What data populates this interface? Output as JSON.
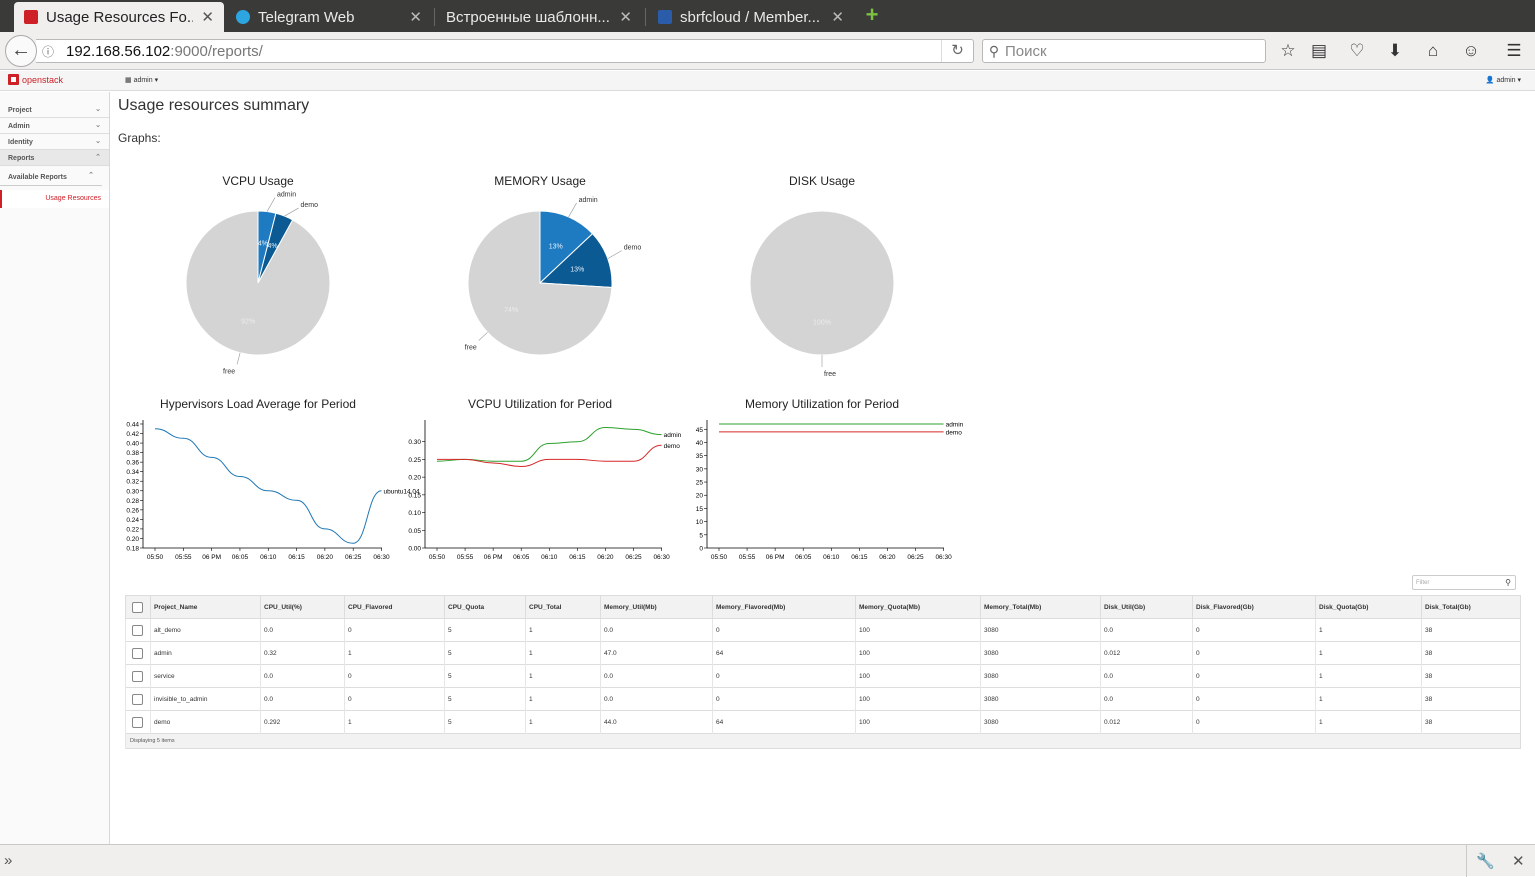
{
  "browser": {
    "tabs": [
      {
        "title": "Usage Resources Fo...",
        "favicon": "#cd2027",
        "active": true
      },
      {
        "title": "Telegram Web",
        "favicon": "#2ca5e0",
        "active": false
      },
      {
        "title": "Встроенные шаблонн...",
        "favicon": "",
        "active": false
      },
      {
        "title": "sbrfcloud / Member...",
        "favicon": "#2a5caa",
        "active": false
      }
    ],
    "url_host": "192.168.56.102",
    "url_path": ":9000/reports/",
    "search_placeholder": "Поиск"
  },
  "header": {
    "logo_text": "openstack",
    "project_selector": "admin ▾",
    "user_menu": "admin ▾"
  },
  "sidebar": {
    "panels": [
      {
        "label": "Project",
        "chev": "⌄"
      },
      {
        "label": "Admin",
        "chev": "⌄"
      },
      {
        "label": "Identity",
        "chev": "⌄"
      },
      {
        "label": "Reports",
        "chev": "⌃"
      }
    ],
    "sub": {
      "label": "Available Reports",
      "chev": "⌃"
    },
    "active_link": "Usage Resources"
  },
  "page": {
    "title": "Usage resources summary",
    "graphs_label": "Graphs:"
  },
  "colors": {
    "admin": "#1f7bc1",
    "demo": "#0b5a94",
    "free": "#d4d4d4",
    "green_line": "#2ca02c",
    "red_line": "#d62728",
    "blue_line": "#1f77b4"
  },
  "chart_data": [
    {
      "type": "pie",
      "title": "VCPU Usage",
      "slices": [
        {
          "label": "admin",
          "value": 4,
          "text": "4%"
        },
        {
          "label": "demo",
          "value": 4,
          "text": "4%"
        },
        {
          "label": "free",
          "value": 92,
          "text": "92%"
        }
      ]
    },
    {
      "type": "pie",
      "title": "MEMORY Usage",
      "slices": [
        {
          "label": "admin",
          "value": 13,
          "text": "13%"
        },
        {
          "label": "demo",
          "value": 13,
          "text": "13%"
        },
        {
          "label": "free",
          "value": 74,
          "text": "74%"
        }
      ]
    },
    {
      "type": "pie",
      "title": "DISK Usage",
      "slices": [
        {
          "label": "free",
          "value": 100,
          "text": "100%"
        }
      ]
    },
    {
      "type": "line",
      "title": "Hypervisors Load Average for Period",
      "x": [
        "05:50",
        "05:55",
        "06 PM",
        "06:05",
        "06:10",
        "06:15",
        "06:20",
        "06:25",
        "06:30"
      ],
      "y_ticks": [
        "0.18",
        "0.20",
        "0.22",
        "0.24",
        "0.26",
        "0.28",
        "0.30",
        "0.32",
        "0.34",
        "0.36",
        "0.38",
        "0.40",
        "0.42",
        "0.44"
      ],
      "ylim": [
        0.18,
        0.44
      ],
      "series": [
        {
          "name": "ubuntu14.04",
          "values": [
            0.43,
            0.41,
            0.37,
            0.33,
            0.3,
            0.28,
            0.22,
            0.19,
            0.3
          ]
        }
      ]
    },
    {
      "type": "line",
      "title": "VCPU Utilization for Period",
      "x": [
        "05:50",
        "05:55",
        "06 PM",
        "06:05",
        "06:10",
        "06:15",
        "06:20",
        "06:25",
        "06:30"
      ],
      "y_ticks": [
        "0.00",
        "0.05",
        "0.10",
        "0.15",
        "0.20",
        "0.25",
        "0.30"
      ],
      "ylim": [
        0,
        0.35
      ],
      "series": [
        {
          "name": "admin",
          "values": [
            0.245,
            0.25,
            0.245,
            0.245,
            0.295,
            0.3,
            0.34,
            0.335,
            0.32
          ]
        },
        {
          "name": "demo",
          "values": [
            0.25,
            0.25,
            0.24,
            0.23,
            0.25,
            0.25,
            0.245,
            0.245,
            0.29
          ]
        }
      ]
    },
    {
      "type": "line",
      "title": "Memory Utilization for Period",
      "x": [
        "05:50",
        "05:55",
        "06 PM",
        "06:05",
        "06:10",
        "06:15",
        "06:20",
        "06:25",
        "06:30"
      ],
      "y_ticks": [
        "0",
        "5",
        "10",
        "15",
        "20",
        "25",
        "30",
        "35",
        "40",
        "45"
      ],
      "ylim": [
        0,
        47
      ],
      "series": [
        {
          "name": "admin",
          "values": [
            47,
            47,
            47,
            47,
            47,
            47,
            47,
            47,
            47
          ]
        },
        {
          "name": "demo",
          "values": [
            44,
            44,
            44,
            44,
            44,
            44,
            44,
            44,
            44
          ]
        }
      ]
    }
  ],
  "table": {
    "filter_placeholder": "Filter",
    "columns": [
      "Project_Name",
      "CPU_Util(%)",
      "CPU_Flavored",
      "CPU_Quota",
      "CPU_Total",
      "Memory_Util(Mb)",
      "Memory_Flavored(Mb)",
      "Memory_Quota(Mb)",
      "Memory_Total(Mb)",
      "Disk_Util(Gb)",
      "Disk_Flavored(Gb)",
      "Disk_Quota(Gb)",
      "Disk_Total(Gb)"
    ],
    "rows": [
      [
        "alt_demo",
        "0.0",
        "0",
        "5",
        "1",
        "0.0",
        "0",
        "100",
        "3080",
        "0.0",
        "0",
        "1",
        "38"
      ],
      [
        "admin",
        "0.32",
        "1",
        "5",
        "1",
        "47.0",
        "64",
        "100",
        "3080",
        "0.012",
        "0",
        "1",
        "38"
      ],
      [
        "service",
        "0.0",
        "0",
        "5",
        "1",
        "0.0",
        "0",
        "100",
        "3080",
        "0.0",
        "0",
        "1",
        "38"
      ],
      [
        "invisible_to_admin",
        "0.0",
        "0",
        "5",
        "1",
        "0.0",
        "0",
        "100",
        "3080",
        "0.0",
        "0",
        "1",
        "38"
      ],
      [
        "demo",
        "0.292",
        "1",
        "5",
        "1",
        "44.0",
        "64",
        "100",
        "3080",
        "0.012",
        "0",
        "1",
        "38"
      ]
    ],
    "footer": "Displaying 5 items"
  }
}
